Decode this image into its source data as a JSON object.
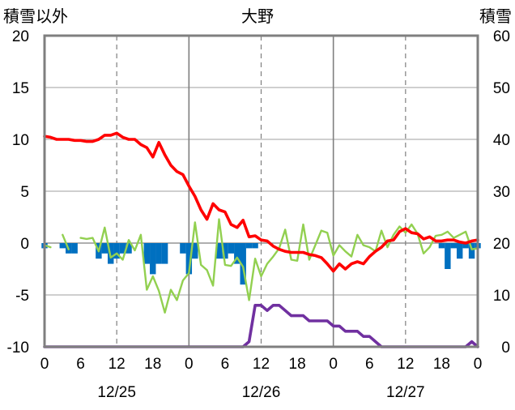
{
  "chart_data": {
    "type": "bar+line",
    "title": "大野",
    "left_axis_label": "積雪以外",
    "right_axis_label": "積雪",
    "left_ylim": [
      -10,
      20
    ],
    "left_yticks": [
      "20",
      "15",
      "10",
      "5",
      "0",
      "-5",
      "-10"
    ],
    "right_ylim": [
      0,
      60
    ],
    "right_yticks": [
      "60",
      "50",
      "40",
      "30",
      "20",
      "10",
      "0"
    ],
    "x_range_hours": [
      0,
      72
    ],
    "x_tick_labels": [
      "0",
      "6",
      "12",
      "18",
      "0",
      "6",
      "12",
      "18",
      "0",
      "6",
      "12",
      "18",
      "0"
    ],
    "dates": [
      "12/25",
      "12/26",
      "12/27"
    ],
    "grid": true,
    "colors": {
      "temperature": "#ff0000",
      "snow_depth": "#7030a0",
      "snow_change": "#0070c0",
      "green_series": "#92d050",
      "grid": "#7f7f7f",
      "frame": "#7f7f7f"
    },
    "temperature": {
      "axis": "left",
      "x": [
        0,
        1,
        2,
        3,
        4,
        5,
        6,
        7,
        8,
        9,
        10,
        11,
        12,
        13,
        14,
        15,
        16,
        17,
        18,
        19,
        20,
        21,
        22,
        23,
        24,
        25,
        26,
        27,
        28,
        29,
        30,
        31,
        32,
        33,
        34,
        35,
        36,
        37,
        38,
        39,
        40,
        41,
        42,
        43,
        44,
        45,
        46,
        47,
        48,
        49,
        50,
        51,
        52,
        53,
        54,
        55,
        56,
        57,
        58,
        59,
        60,
        61,
        62,
        63,
        64,
        65,
        66,
        67,
        68,
        69,
        70,
        71,
        72
      ],
      "values": [
        10.3,
        10.2,
        10.0,
        10.0,
        10.0,
        9.9,
        9.9,
        9.8,
        9.8,
        10.0,
        10.4,
        10.4,
        10.6,
        10.2,
        10.0,
        10.0,
        9.5,
        9.2,
        8.3,
        9.7,
        8.5,
        7.5,
        6.9,
        6.6,
        5.5,
        4.5,
        3.2,
        2.3,
        3.8,
        3.2,
        3.0,
        1.8,
        1.5,
        2.2,
        0.6,
        0.7,
        0.3,
        0.2,
        -0.3,
        -0.6,
        -0.8,
        -0.9,
        -0.9,
        -0.9,
        -1.1,
        -1.2,
        -1.4,
        -2.0,
        -2.7,
        -2.0,
        -2.5,
        -2.0,
        -1.8,
        -2.0,
        -1.3,
        -0.8,
        -0.4,
        0.2,
        0.3,
        1.1,
        1.4,
        1.0,
        0.9,
        0.4,
        0.6,
        0.2,
        0.2,
        0.3,
        0.3,
        0.1,
        0.0,
        0.2,
        0.3
      ]
    },
    "green_series": {
      "axis": "left",
      "x": [
        0,
        1,
        2,
        3,
        4,
        5,
        6,
        7,
        8,
        9,
        10,
        11,
        12,
        13,
        14,
        15,
        16,
        17,
        18,
        19,
        20,
        21,
        22,
        23,
        24,
        25,
        26,
        27,
        28,
        29,
        30,
        31,
        32,
        33,
        34,
        35,
        36,
        37,
        38,
        39,
        40,
        41,
        42,
        43,
        44,
        45,
        46,
        47,
        48,
        49,
        50,
        51,
        52,
        53,
        54,
        55,
        56,
        57,
        58,
        59,
        60,
        61,
        62,
        63,
        64,
        65,
        66,
        67,
        68,
        69,
        70,
        71,
        72
      ],
      "values": [
        -0.2,
        -0.4,
        null,
        0.8,
        -0.6,
        null,
        0.5,
        0.4,
        0.5,
        -0.8,
        1.5,
        -1.4,
        -1.0,
        -1.6,
        0.3,
        -0.7,
        0.8,
        -4.5,
        -3.2,
        -4.6,
        -6.7,
        -4.5,
        -5.5,
        -3.6,
        -2.9,
        2.0,
        -2.1,
        -2.6,
        -4.1,
        2.3,
        -2.1,
        -2.2,
        -1.4,
        -2.3,
        -5.5,
        -1.5,
        -3.2,
        -2.0,
        -1.3,
        -0.5,
        1.3,
        -1.6,
        -1.7,
        1.8,
        -1.6,
        -0.2,
        1.2,
        1.0,
        -1.2,
        -0.2,
        -0.8,
        -1.3,
        0.8,
        -0.2,
        -0.4,
        -0.8,
        1.2,
        -0.4,
        0.8,
        1.6,
        1.0,
        1.8,
        0.9,
        -1.0,
        -0.4,
        0.7,
        0.8,
        1.1,
        0.5,
        0.8,
        1.1,
        -0.6,
        -0.5
      ]
    },
    "snow_change": {
      "axis": "left",
      "x": [
        0,
        1,
        2,
        3,
        4,
        5,
        6,
        7,
        8,
        9,
        10,
        11,
        12,
        13,
        14,
        15,
        16,
        17,
        18,
        19,
        20,
        21,
        22,
        23,
        24,
        25,
        26,
        27,
        28,
        29,
        30,
        31,
        32,
        33,
        34,
        35,
        36,
        37,
        38,
        39,
        40,
        41,
        42,
        43,
        44,
        45,
        46,
        47,
        48,
        49,
        50,
        51,
        52,
        53,
        54,
        55,
        56,
        57,
        58,
        59,
        60,
        61,
        62,
        63,
        64,
        65,
        66,
        67,
        68,
        69,
        70,
        71,
        72
      ],
      "values": [
        -0.5,
        0,
        0,
        -0.5,
        -1.0,
        -1.0,
        0,
        0,
        0,
        -1.5,
        -1.0,
        -2.0,
        -1.5,
        -1.0,
        -1.0,
        0,
        0,
        -2.0,
        -3.0,
        -2.0,
        -2.0,
        0,
        0,
        -1.0,
        -3.0,
        -1.5,
        0,
        0,
        0,
        -1.5,
        -1.5,
        -1.0,
        -2.0,
        -4.0,
        -0.5,
        -0.5,
        0,
        0,
        0,
        0,
        0,
        0,
        0,
        0,
        0,
        0,
        0,
        0,
        0,
        0,
        0,
        0,
        0,
        0,
        0,
        0,
        0,
        0,
        0,
        0,
        0,
        0,
        0,
        0,
        0,
        0,
        -0.5,
        -2.5,
        -0.5,
        -1.5,
        -0.5,
        -1.5,
        -0.5
      ]
    },
    "snow_depth": {
      "axis": "right",
      "x": [
        0,
        1,
        2,
        3,
        4,
        5,
        6,
        7,
        8,
        9,
        10,
        11,
        12,
        13,
        14,
        15,
        16,
        17,
        18,
        19,
        20,
        21,
        22,
        23,
        24,
        25,
        26,
        27,
        28,
        29,
        30,
        31,
        32,
        33,
        34,
        35,
        36,
        37,
        38,
        39,
        40,
        41,
        42,
        43,
        44,
        45,
        46,
        47,
        48,
        49,
        50,
        51,
        52,
        53,
        54,
        55,
        56,
        57,
        58,
        59,
        60,
        61,
        62,
        63,
        64,
        65,
        66,
        67,
        68,
        69,
        70,
        71,
        72
      ],
      "values": [
        0,
        0,
        0,
        0,
        0,
        0,
        0,
        0,
        0,
        0,
        0,
        0,
        0,
        0,
        0,
        0,
        0,
        0,
        0,
        0,
        0,
        0,
        0,
        0,
        0,
        0,
        0,
        0,
        0,
        0,
        0,
        0,
        0,
        0,
        1,
        8,
        8,
        7,
        8,
        8,
        7,
        6,
        6,
        6,
        5,
        5,
        5,
        5,
        4,
        4,
        3,
        3,
        3,
        2,
        2,
        1,
        0,
        0,
        0,
        0,
        0,
        0,
        0,
        0,
        0,
        0,
        0,
        0,
        0,
        0,
        0,
        1,
        0
      ]
    }
  }
}
